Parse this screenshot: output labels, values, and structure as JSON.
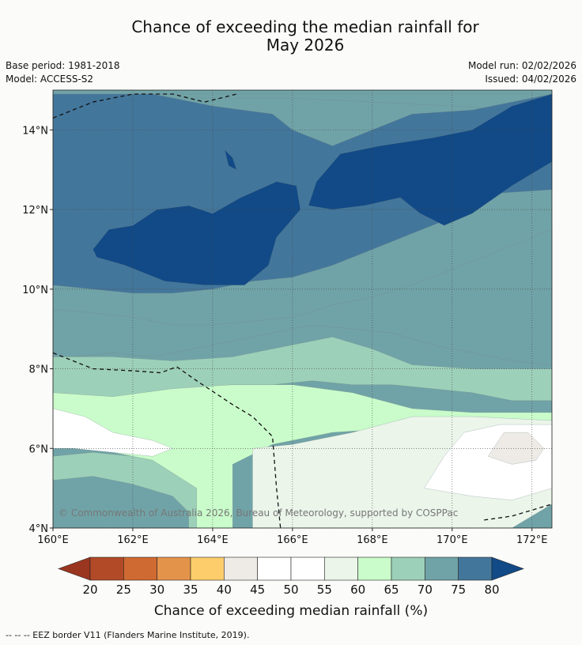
{
  "header": {
    "title_line1": "Chance of exceeding the median rainfall for",
    "title_line2": "May 2026",
    "base_period": "Base period: 1981-2018",
    "model": "Model: ACCESS-S2",
    "model_run": "Model run: 02/02/2026",
    "issued": "Issued: 04/02/2026"
  },
  "footer": {
    "legend_note": "--  --  -- EEZ border V11 (Flanders Marine Institute, 2019)."
  },
  "chart_data": {
    "type": "heatmap",
    "title": "Chance of exceeding the median rainfall for May 2026",
    "x_range": [
      160,
      172.5
    ],
    "y_range": [
      4,
      15
    ],
    "x_ticks": [
      {
        "value": 160,
        "label": "160°E"
      },
      {
        "value": 162,
        "label": "162°E"
      },
      {
        "value": 164,
        "label": "164°E"
      },
      {
        "value": 166,
        "label": "166°E"
      },
      {
        "value": 168,
        "label": "168°E"
      },
      {
        "value": 170,
        "label": "170°E"
      },
      {
        "value": 172,
        "label": "172°E"
      }
    ],
    "y_ticks": [
      {
        "value": 4,
        "label": "4°N"
      },
      {
        "value": 6,
        "label": "6°N"
      },
      {
        "value": 8,
        "label": "8°N"
      },
      {
        "value": 10,
        "label": "10°N"
      },
      {
        "value": 12,
        "label": "12°N"
      },
      {
        "value": 14,
        "label": "14°N"
      }
    ],
    "gridlines": true,
    "copyright": "© Commonwealth of Australia 2026, Bureau of Meteorology, supported by COSPPac",
    "colorbar": {
      "label": "Chance of exceeding median rainfall (%)",
      "tick_labels": [
        "20",
        "25",
        "30",
        "35",
        "40",
        "45",
        "50",
        "55",
        "60",
        "65",
        "70",
        "75",
        "80"
      ],
      "under_color": "#9a3520",
      "over_color": "#114a86",
      "bin_colors": [
        "#b24a27",
        "#d06a33",
        "#e4944a",
        "#fdcd6b",
        "#eeebe6",
        "#ffffff",
        "#ffffff",
        "#ebf5ea",
        "#c9fcca",
        "#9dd0b9",
        "#70a3a7",
        "#43769b"
      ]
    },
    "regions": [
      {
        "name": "band-70-75",
        "value_range": [
          70,
          75
        ],
        "color": "#70a3a7",
        "polygon": [
          [
            160,
            9.5
          ],
          [
            161,
            9.4
          ],
          [
            162,
            9.3
          ],
          [
            163,
            9.1
          ],
          [
            164,
            9.1
          ],
          [
            165,
            9.2
          ],
          [
            166,
            9.3
          ],
          [
            167,
            9.6
          ],
          [
            168,
            9.8
          ],
          [
            169,
            10.1
          ],
          [
            170,
            10.5
          ],
          [
            171,
            10.9
          ],
          [
            172,
            11.3
          ],
          [
            172.5,
            11.5
          ],
          [
            172.5,
            8.1
          ],
          [
            171.5,
            8.2
          ],
          [
            170.5,
            8.4
          ],
          [
            169.5,
            8.6
          ],
          [
            168.5,
            8.9
          ],
          [
            167.5,
            9.0
          ],
          [
            166.5,
            9.1
          ],
          [
            165.5,
            8.9
          ],
          [
            164.5,
            8.7
          ],
          [
            163.5,
            8.5
          ],
          [
            162.5,
            8.3
          ],
          [
            161.5,
            8.4
          ],
          [
            160.5,
            8.3
          ],
          [
            160,
            8.3
          ]
        ]
      },
      {
        "name": "band-70-75-north",
        "value_range": [
          70,
          75
        ],
        "color": "#70a3a7",
        "polygon": [
          [
            160,
            14.9
          ],
          [
            172.5,
            14.9
          ],
          [
            172.5,
            14.3
          ],
          [
            171.5,
            14.5
          ],
          [
            170,
            14.6
          ],
          [
            168,
            14.7
          ],
          [
            166,
            14.8
          ],
          [
            164,
            14.8
          ],
          [
            162,
            14.8
          ],
          [
            160,
            14.7
          ]
        ]
      },
      {
        "name": "band-75-80-north",
        "value_range": [
          75,
          80
        ],
        "color": "#43769b",
        "polygon": [
          [
            160,
            14.9
          ],
          [
            162.5,
            14.9
          ],
          [
            164,
            14.6
          ],
          [
            165.5,
            14.4
          ],
          [
            166,
            14.0
          ],
          [
            167,
            13.6
          ],
          [
            168,
            14.0
          ],
          [
            169,
            14.4
          ],
          [
            170.5,
            14.5
          ],
          [
            172.5,
            14.9
          ],
          [
            172.5,
            12.5
          ],
          [
            171,
            12.4
          ],
          [
            170,
            11.8
          ],
          [
            169,
            11.4
          ],
          [
            168,
            11.0
          ],
          [
            167,
            10.6
          ],
          [
            166,
            10.3
          ],
          [
            165,
            10.2
          ],
          [
            164,
            10.0
          ],
          [
            163,
            9.9
          ],
          [
            162,
            9.9
          ],
          [
            161,
            10.0
          ],
          [
            160,
            10.1
          ]
        ]
      },
      {
        "name": "band-80-plus-west",
        "value_range": [
          80,
          100
        ],
        "color": "#114a86",
        "polygon": [
          [
            161.0,
            11.0
          ],
          [
            161.4,
            11.5
          ],
          [
            162.0,
            11.6
          ],
          [
            162.6,
            12.0
          ],
          [
            163.4,
            12.1
          ],
          [
            164.0,
            11.9
          ],
          [
            164.7,
            12.3
          ],
          [
            165.6,
            12.7
          ],
          [
            166.1,
            12.6
          ],
          [
            166.2,
            12.0
          ],
          [
            165.6,
            11.3
          ],
          [
            165.4,
            10.6
          ],
          [
            164.8,
            10.1
          ],
          [
            163.8,
            10.1
          ],
          [
            162.8,
            10.2
          ],
          [
            161.8,
            10.6
          ],
          [
            161.1,
            10.8
          ]
        ]
      },
      {
        "name": "band-80-plus-east",
        "value_range": [
          80,
          100
        ],
        "color": "#114a86",
        "polygon": [
          [
            166.4,
            12.1
          ],
          [
            166.6,
            12.7
          ],
          [
            167.2,
            13.4
          ],
          [
            168.2,
            13.6
          ],
          [
            169.5,
            13.8
          ],
          [
            170.5,
            14.0
          ],
          [
            171.5,
            14.6
          ],
          [
            172.5,
            14.9
          ],
          [
            172.5,
            13.2
          ],
          [
            171.5,
            12.6
          ],
          [
            170.5,
            11.9
          ],
          [
            169.8,
            11.6
          ],
          [
            169.2,
            11.9
          ],
          [
            168.7,
            12.3
          ],
          [
            167.8,
            12.1
          ],
          [
            167.0,
            12.0
          ]
        ]
      },
      {
        "name": "band-65-70",
        "value_range": [
          65,
          70
        ],
        "color": "#9dd0b9",
        "polygon": [
          [
            160,
            8.3
          ],
          [
            161.5,
            8.3
          ],
          [
            163,
            8.2
          ],
          [
            164.5,
            8.3
          ],
          [
            166,
            8.6
          ],
          [
            167,
            8.8
          ],
          [
            168,
            8.5
          ],
          [
            169,
            8.1
          ],
          [
            170.5,
            8.0
          ],
          [
            172,
            8.0
          ],
          [
            172.5,
            8.0
          ],
          [
            172.5,
            7.2
          ],
          [
            171.5,
            7.2
          ],
          [
            170.5,
            7.4
          ],
          [
            169.5,
            7.5
          ],
          [
            168.5,
            7.6
          ],
          [
            167.5,
            7.6
          ],
          [
            166.5,
            7.7
          ],
          [
            165.5,
            7.6
          ],
          [
            164.5,
            7.6
          ],
          [
            163.5,
            7.5
          ],
          [
            162.5,
            7.3
          ],
          [
            161.5,
            7.1
          ],
          [
            160.5,
            7.2
          ],
          [
            160,
            7.3
          ]
        ]
      },
      {
        "name": "band-65-70-south",
        "value_range": [
          65,
          70
        ],
        "color": "#9dd0b9",
        "polygon": [
          [
            160,
            5.8
          ],
          [
            161,
            5.9
          ],
          [
            162,
            5.8
          ],
          [
            163,
            5.6
          ],
          [
            163.6,
            5.3
          ],
          [
            164,
            4.8
          ],
          [
            164,
            4.0
          ],
          [
            160,
            4.0
          ]
        ]
      },
      {
        "name": "band-70-75-south",
        "value_range": [
          70,
          75
        ],
        "color": "#70a3a7",
        "polygon": [
          [
            160,
            5.2
          ],
          [
            161,
            5.3
          ],
          [
            162,
            5.1
          ],
          [
            163,
            4.8
          ],
          [
            163.4,
            4.4
          ],
          [
            163.4,
            4.0
          ],
          [
            160,
            4.0
          ]
        ]
      },
      {
        "name": "band-60-65",
        "value_range": [
          60,
          65
        ],
        "color": "#c9fcca",
        "polygon": [
          [
            160,
            7.4
          ],
          [
            161.5,
            7.3
          ],
          [
            163,
            7.5
          ],
          [
            164.5,
            7.6
          ],
          [
            166,
            7.6
          ],
          [
            167.5,
            7.4
          ],
          [
            169,
            7.0
          ],
          [
            170.5,
            6.9
          ],
          [
            172.5,
            6.9
          ],
          [
            172.5,
            6.6
          ],
          [
            170.5,
            6.7
          ],
          [
            168.5,
            6.5
          ],
          [
            167,
            6.4
          ],
          [
            165.5,
            6.1
          ],
          [
            164.5,
            5.6
          ],
          [
            164.5,
            4.0
          ],
          [
            163.6,
            4.0
          ],
          [
            163.6,
            5.0
          ],
          [
            162.5,
            5.7
          ],
          [
            161,
            6.0
          ],
          [
            160,
            6.1
          ]
        ]
      },
      {
        "name": "band-55-60-east",
        "value_range": [
          55,
          60
        ],
        "color": "#ebf5ea",
        "polygon": [
          [
            165,
            6.0
          ],
          [
            166,
            6.1
          ],
          [
            167.5,
            6.4
          ],
          [
            169,
            6.8
          ],
          [
            170.5,
            6.8
          ],
          [
            172.5,
            6.7
          ],
          [
            172.5,
            4.6
          ],
          [
            171.5,
            4.0
          ],
          [
            165,
            4.0
          ]
        ]
      },
      {
        "name": "band-45-50-east",
        "value_range": [
          45,
          55
        ],
        "color": "#ffffff",
        "polygon": [
          [
            169.3,
            5.0
          ],
          [
            169.8,
            5.8
          ],
          [
            170.3,
            6.4
          ],
          [
            171.2,
            6.6
          ],
          [
            172.5,
            6.6
          ],
          [
            172.5,
            5.0
          ],
          [
            171.5,
            4.7
          ],
          [
            170.5,
            4.8
          ]
        ]
      },
      {
        "name": "band-40-45",
        "value_range": [
          40,
          45
        ],
        "color": "#eeebe6",
        "polygon": [
          [
            170.9,
            5.8
          ],
          [
            171.3,
            6.4
          ],
          [
            171.9,
            6.4
          ],
          [
            172.3,
            6.0
          ],
          [
            172.1,
            5.7
          ],
          [
            171.5,
            5.6
          ]
        ]
      },
      {
        "name": "band-45-50-west",
        "value_range": [
          45,
          55
        ],
        "color": "#ffffff",
        "polygon": [
          [
            160,
            7.0
          ],
          [
            160.8,
            6.8
          ],
          [
            161.5,
            6.4
          ],
          [
            162.5,
            6.2
          ],
          [
            163,
            6.0
          ],
          [
            162.5,
            5.8
          ],
          [
            161.5,
            5.9
          ],
          [
            160.5,
            6.0
          ],
          [
            160,
            6.0
          ]
        ]
      },
      {
        "name": "band-80-plus-islet",
        "value_range": [
          80,
          100
        ],
        "color": "#114a86",
        "polygon": [
          [
            164.3,
            13.5
          ],
          [
            164.5,
            13.3
          ],
          [
            164.6,
            13.0
          ],
          [
            164.4,
            13.1
          ]
        ]
      }
    ],
    "eez_border": [
      [
        [
          160,
          14.3
        ],
        [
          161,
          14.7
        ],
        [
          162,
          14.9
        ],
        [
          163,
          14.9
        ],
        [
          163.8,
          14.7
        ],
        [
          164.6,
          14.9
        ]
      ],
      [
        [
          160,
          8.4
        ],
        [
          161,
          8.0
        ],
        [
          162,
          7.95
        ],
        [
          162.7,
          7.9
        ],
        [
          163.1,
          8.05
        ],
        [
          163.6,
          7.7
        ],
        [
          164.5,
          7.1
        ],
        [
          165,
          6.8
        ],
        [
          165.5,
          6.3
        ],
        [
          165.6,
          5.0
        ],
        [
          165.7,
          4.0
        ]
      ],
      [
        [
          170.8,
          4.2
        ],
        [
          171.5,
          4.3
        ],
        [
          172.5,
          4.6
        ]
      ]
    ]
  }
}
